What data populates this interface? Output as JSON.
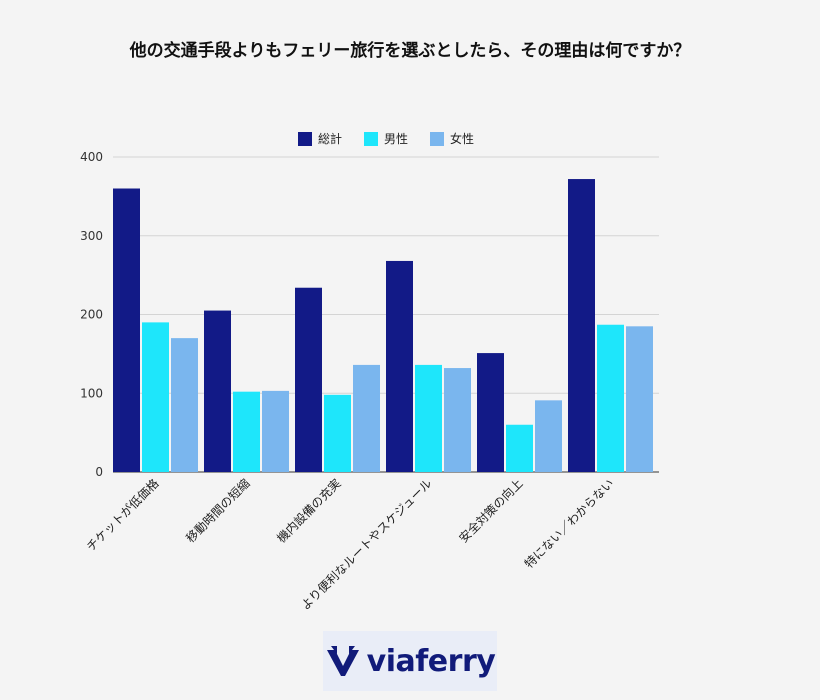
{
  "chart_data": {
    "type": "bar",
    "title": "他の交通手段よりもフェリー旅行を選ぶとしたら、その理由は何ですか？",
    "categories": [
      "チケットが低価格",
      "移動時間の短縮",
      "機内設備の充実",
      "より便利なルートやスケジュール",
      "安全対策の向上",
      "特にない／わからない"
    ],
    "series": [
      {
        "name": "総計",
        "color": "#121a87",
        "values": [
          360,
          205,
          234,
          268,
          151,
          372
        ]
      },
      {
        "name": "男性",
        "color": "#1ee6fb",
        "values": [
          190,
          102,
          98,
          136,
          60,
          187
        ]
      },
      {
        "name": "女性",
        "color": "#7ab6ee",
        "values": [
          170,
          103,
          136,
          132,
          91,
          185
        ]
      }
    ],
    "yticks": [
      0,
      100,
      200,
      300,
      400
    ],
    "ylim": [
      0,
      400
    ],
    "grid": true,
    "legend": "top-center"
  },
  "logo": {
    "text": "viaferry",
    "color": "#111b7a"
  }
}
